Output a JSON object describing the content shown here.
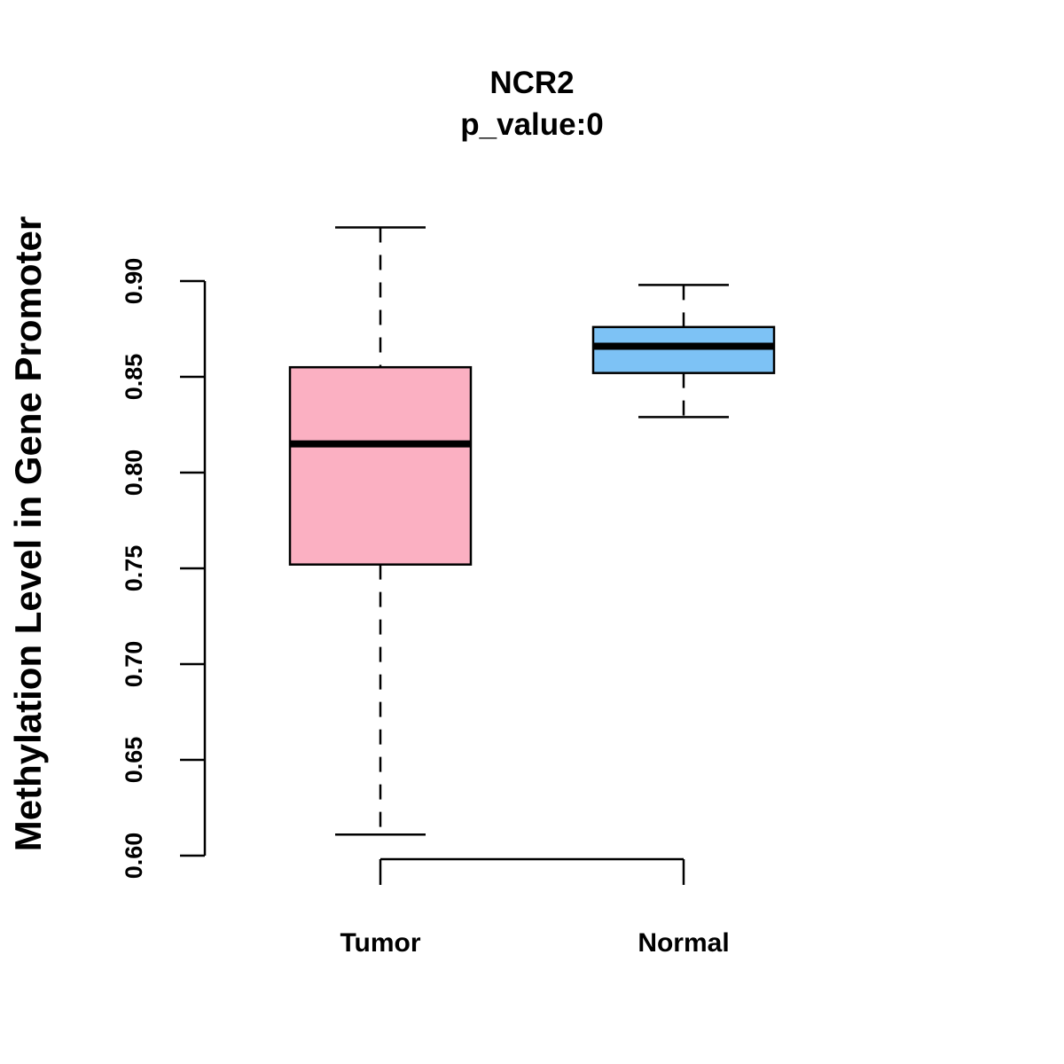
{
  "chart_data": {
    "type": "box",
    "title": "NCR2",
    "subtitle": "p_value:0",
    "xlabel": "",
    "ylabel": "Methylation Level in Gene Promoter",
    "ylim": [
      0.6,
      0.9
    ],
    "yticks": [
      0.6,
      0.65,
      0.7,
      0.75,
      0.8,
      0.85,
      0.9
    ],
    "ytick_labels": [
      "0.60",
      "0.65",
      "0.70",
      "0.75",
      "0.80",
      "0.85",
      "0.90"
    ],
    "categories": [
      "Tumor",
      "Normal"
    ],
    "series": [
      {
        "name": "Tumor",
        "color": "#FBB0C2",
        "whisker_low": 0.611,
        "q1": 0.752,
        "median": 0.815,
        "q3": 0.855,
        "whisker_high": 0.928
      },
      {
        "name": "Normal",
        "color": "#7DC2F5",
        "whisker_low": 0.829,
        "q1": 0.852,
        "median": 0.866,
        "q3": 0.876,
        "whisker_high": 0.898
      }
    ],
    "grid": false,
    "legend": "none"
  }
}
